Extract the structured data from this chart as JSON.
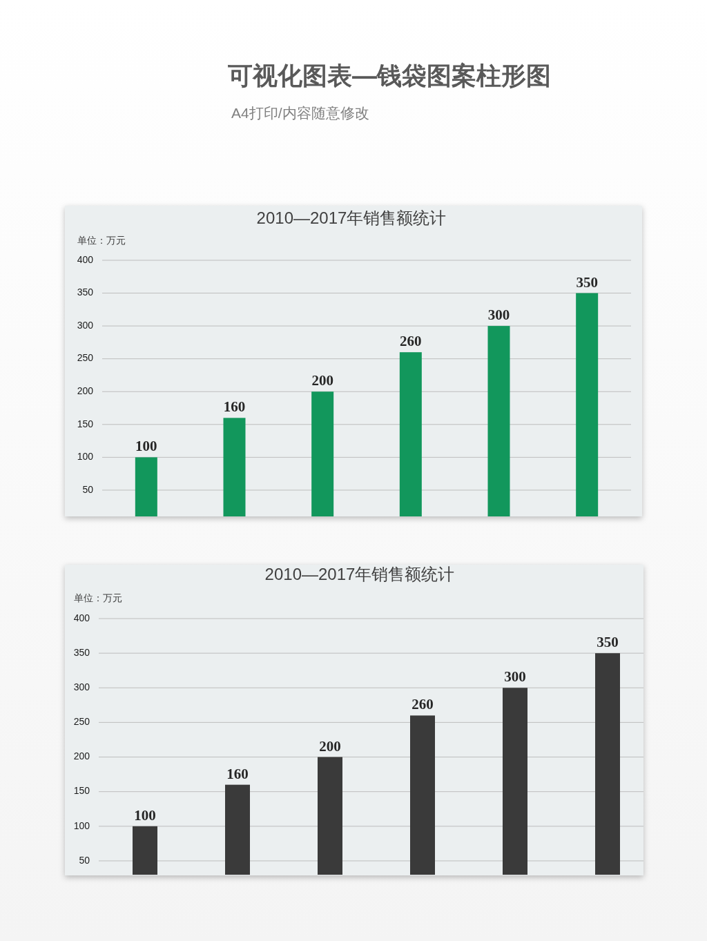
{
  "chart_data": [
    {
      "type": "other",
      "title": "可视化图表—钱袋图案柱形图",
      "subtitle": "A4打印/内容随意修改"
    },
    {
      "type": "bar",
      "title": "2010—2017年销售额统计",
      "ylabel": "单位：万元",
      "categories": [
        null,
        null,
        null,
        null,
        null,
        null
      ],
      "values": [
        100,
        160,
        200,
        260,
        300,
        350
      ],
      "color": "#12975c",
      "ylim": [
        10,
        400
      ],
      "yticks": [
        50,
        100,
        150,
        200,
        250,
        300,
        350,
        400
      ],
      "grid": "y",
      "tick_labels": "y",
      "data_labels": true
    },
    {
      "type": "bar",
      "title": "2010—2017年销售额统计",
      "ylabel": "单位：万元",
      "categories": [
        null,
        null,
        null,
        null,
        null,
        null
      ],
      "values": [
        100,
        160,
        200,
        260,
        300,
        350
      ],
      "color": "#3a3a3a",
      "ylim": [
        30,
        400
      ],
      "yticks": [
        50,
        100,
        150,
        200,
        250,
        300,
        350,
        400
      ],
      "grid": "y",
      "tick_labels": "y",
      "data_labels": true
    }
  ]
}
